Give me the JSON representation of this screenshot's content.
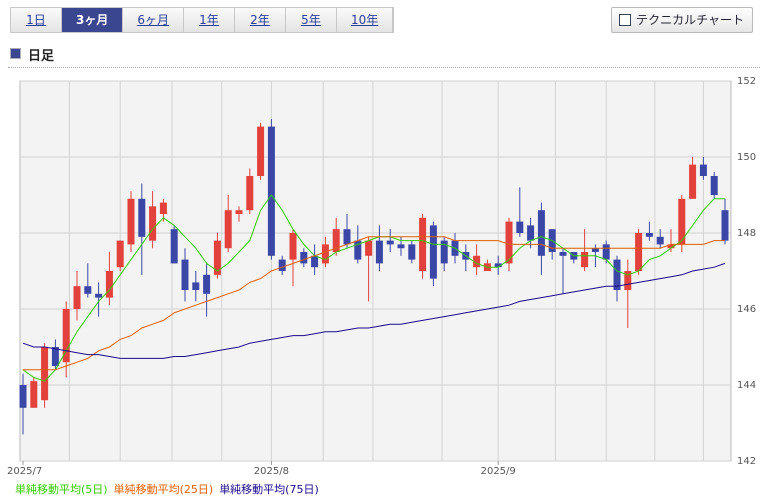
{
  "ui": {
    "tabs": [
      "1日",
      "3ヶ月",
      "6ヶ月",
      "1年",
      "2年",
      "5年",
      "10年"
    ],
    "selected_tab": 1,
    "button": "テクニカルチャート",
    "heading": "日足"
  },
  "chart_data": {
    "type": "candlestick",
    "categories": [
      "2025/7",
      null,
      null,
      null,
      null,
      null,
      null,
      null,
      null,
      null,
      null,
      null,
      null,
      null,
      null,
      null,
      null,
      null,
      null,
      null,
      null,
      null,
      null,
      "2025/8",
      null,
      null,
      null,
      null,
      null,
      null,
      null,
      null,
      null,
      null,
      null,
      null,
      null,
      null,
      null,
      null,
      null,
      null,
      null,
      null,
      "2025/9",
      null,
      null,
      null,
      null,
      null,
      null,
      null,
      null,
      null,
      null,
      null,
      null,
      null,
      null,
      null,
      null,
      null,
      null,
      null,
      null,
      null
    ],
    "open": [
      144.0,
      143.4,
      143.6,
      145.0,
      144.6,
      146.0,
      146.6,
      146.4,
      146.3,
      147.1,
      147.7,
      148.9,
      147.8,
      148.5,
      148.1,
      147.3,
      146.7,
      146.9,
      146.9,
      147.6,
      148.5,
      148.6,
      149.5,
      150.8,
      147.3,
      147.3,
      147.5,
      147.4,
      147.2,
      147.5,
      148.1,
      147.8,
      147.4,
      147.8,
      147.8,
      147.7,
      147.7,
      147.0,
      148.2,
      147.8,
      147.8,
      147.5,
      147.1,
      147.0,
      147.2,
      147.2,
      148.3,
      148.2,
      148.6,
      148.1,
      147.5,
      147.5,
      147.1,
      147.6,
      147.7,
      147.3,
      146.5,
      147.0,
      148.0,
      147.9,
      147.6,
      147.7,
      148.9,
      149.8,
      149.5,
      148.6
    ],
    "high": [
      144.3,
      144.2,
      145.1,
      145.2,
      146.2,
      147.0,
      147.2,
      146.7,
      147.5,
      147.8,
      149.1,
      149.3,
      149.1,
      148.9,
      148.2,
      147.6,
      147.0,
      147.2,
      148.0,
      149.0,
      148.7,
      149.7,
      150.9,
      151.0,
      147.4,
      148.1,
      147.6,
      147.7,
      147.9,
      148.4,
      148.5,
      148.2,
      147.9,
      148.2,
      148.1,
      147.9,
      147.8,
      148.5,
      148.3,
      147.9,
      148.0,
      147.7,
      147.7,
      147.3,
      147.4,
      148.4,
      149.2,
      148.4,
      148.8,
      148.1,
      147.6,
      147.5,
      148.1,
      147.7,
      147.8,
      147.4,
      147.3,
      148.1,
      148.3,
      148.1,
      148.1,
      149.0,
      150.0,
      150.0,
      149.6,
      148.9
    ],
    "low": [
      142.7,
      143.4,
      143.4,
      144.4,
      144.2,
      145.7,
      146.3,
      145.8,
      146.1,
      147.0,
      147.5,
      146.9,
      147.6,
      148.3,
      147.2,
      146.2,
      146.2,
      145.8,
      146.8,
      147.5,
      148.3,
      148.5,
      149.4,
      147.3,
      146.9,
      146.6,
      147.1,
      146.9,
      147.1,
      147.4,
      147.6,
      147.2,
      146.2,
      147.0,
      147.5,
      147.4,
      147.2,
      146.8,
      146.6,
      147.0,
      147.2,
      147.0,
      146.9,
      147.0,
      146.9,
      147.0,
      147.9,
      147.6,
      146.9,
      147.3,
      146.4,
      147.2,
      147.0,
      147.1,
      147.2,
      146.2,
      145.5,
      146.9,
      147.8,
      147.6,
      147.5,
      147.5,
      148.9,
      149.4,
      148.9,
      147.7
    ],
    "close": [
      143.4,
      144.1,
      145.0,
      144.5,
      146.0,
      146.6,
      146.4,
      146.3,
      147.0,
      147.8,
      148.9,
      147.9,
      148.7,
      148.8,
      147.2,
      146.5,
      146.5,
      146.4,
      147.8,
      148.6,
      148.6,
      149.5,
      150.8,
      147.4,
      147.0,
      148.0,
      147.2,
      147.1,
      147.7,
      148.1,
      147.7,
      147.3,
      147.8,
      147.2,
      147.7,
      147.6,
      147.3,
      148.4,
      146.8,
      147.2,
      147.4,
      147.3,
      147.4,
      147.2,
      147.1,
      148.3,
      148.0,
      147.8,
      147.4,
      147.5,
      147.4,
      147.3,
      147.5,
      147.5,
      147.3,
      146.5,
      147.0,
      148.0,
      147.9,
      147.7,
      147.7,
      148.9,
      149.8,
      149.5,
      149.0,
      147.8
    ],
    "up_color": "#e3413b",
    "down_color": "#3b47a6",
    "series": [
      {
        "name": "単純移動平均(5日)",
        "color": "#33cc00",
        "values": [
          144.4,
          144.2,
          144.1,
          144.4,
          144.9,
          145.4,
          145.8,
          146.2,
          146.5,
          146.9,
          147.3,
          147.7,
          148.1,
          148.4,
          148.2,
          147.9,
          147.6,
          147.2,
          147.0,
          147.2,
          147.5,
          147.8,
          148.6,
          149.0,
          148.6,
          148.1,
          147.7,
          147.4,
          147.3,
          147.5,
          147.6,
          147.7,
          147.8,
          147.9,
          147.9,
          147.8,
          147.8,
          147.8,
          147.7,
          147.7,
          147.6,
          147.4,
          147.2,
          147.1,
          147.1,
          147.3,
          147.6,
          147.8,
          147.9,
          147.8,
          147.6,
          147.4,
          147.4,
          147.4,
          147.3,
          147.0,
          146.9,
          147.0,
          147.3,
          147.4,
          147.6,
          147.8,
          148.2,
          148.6,
          148.9,
          148.9
        ]
      },
      {
        "name": "単純移動平均(25日)",
        "color": "#e06000",
        "values": [
          144.4,
          144.4,
          144.4,
          144.4,
          144.5,
          144.6,
          144.7,
          144.9,
          145.0,
          145.2,
          145.3,
          145.5,
          145.6,
          145.7,
          145.9,
          146.0,
          146.1,
          146.2,
          146.3,
          146.4,
          146.5,
          146.7,
          146.8,
          147.0,
          147.1,
          147.2,
          147.3,
          147.4,
          147.5,
          147.6,
          147.7,
          147.8,
          147.9,
          147.9,
          147.9,
          147.9,
          147.9,
          147.9,
          147.9,
          147.9,
          147.8,
          147.8,
          147.8,
          147.8,
          147.8,
          147.7,
          147.7,
          147.7,
          147.7,
          147.6,
          147.6,
          147.6,
          147.6,
          147.6,
          147.6,
          147.6,
          147.6,
          147.6,
          147.6,
          147.6,
          147.7,
          147.7,
          147.7,
          147.7,
          147.8,
          147.8
        ]
      },
      {
        "name": "単純移動平均(75日)",
        "color": "#1a0a8c",
        "values": [
          145.1,
          145.0,
          145.0,
          144.95,
          144.9,
          144.85,
          144.8,
          144.8,
          144.75,
          144.7,
          144.7,
          144.7,
          144.7,
          144.7,
          144.75,
          144.75,
          144.8,
          144.85,
          144.9,
          144.95,
          145.0,
          145.1,
          145.15,
          145.2,
          145.25,
          145.3,
          145.3,
          145.35,
          145.4,
          145.4,
          145.45,
          145.5,
          145.5,
          145.55,
          145.6,
          145.6,
          145.65,
          145.7,
          145.75,
          145.8,
          145.85,
          145.9,
          145.95,
          146.0,
          146.05,
          146.1,
          146.2,
          146.25,
          146.3,
          146.35,
          146.4,
          146.45,
          146.5,
          146.55,
          146.6,
          146.6,
          146.65,
          146.7,
          146.75,
          146.8,
          146.85,
          146.9,
          147.0,
          147.05,
          147.1,
          147.2
        ]
      }
    ],
    "ylim": [
      142,
      152
    ],
    "yticks": [
      142,
      144,
      146,
      148,
      150,
      152
    ],
    "grid": true
  }
}
